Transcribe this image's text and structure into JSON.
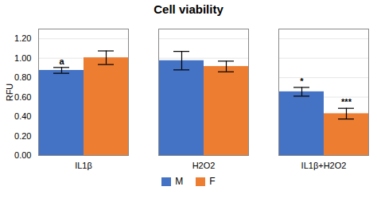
{
  "chart_data": {
    "type": "bar",
    "title": "Cell viability",
    "ylabel": "RFU",
    "categories": [
      "IL1β",
      "H2O2",
      "IL1β+H2O2"
    ],
    "series": [
      {
        "name": "M",
        "color": "#4472C4",
        "values": [
          0.875,
          0.975,
          0.655
        ],
        "errors": [
          0.03,
          0.095,
          0.045
        ],
        "annotations": [
          "a",
          null,
          "*"
        ]
      },
      {
        "name": "F",
        "color": "#ED7D31",
        "values": [
          1.005,
          0.915,
          0.43
        ],
        "errors": [
          0.07,
          0.055,
          0.055
        ],
        "annotations": [
          null,
          null,
          "***"
        ]
      }
    ],
    "ylim": [
      0.0,
      1.3
    ],
    "yticks": [
      {
        "value": 0.0,
        "label": "0.00"
      },
      {
        "value": 0.2,
        "label": "0.20"
      },
      {
        "value": 0.4,
        "label": "0.40"
      },
      {
        "value": 0.6,
        "label": "0.60"
      },
      {
        "value": 0.8,
        "label": "0.80"
      },
      {
        "value": 1.0,
        "label": "1.00"
      },
      {
        "value": 1.2,
        "label": "1.20"
      }
    ],
    "grid": true,
    "legend": "bottom"
  }
}
